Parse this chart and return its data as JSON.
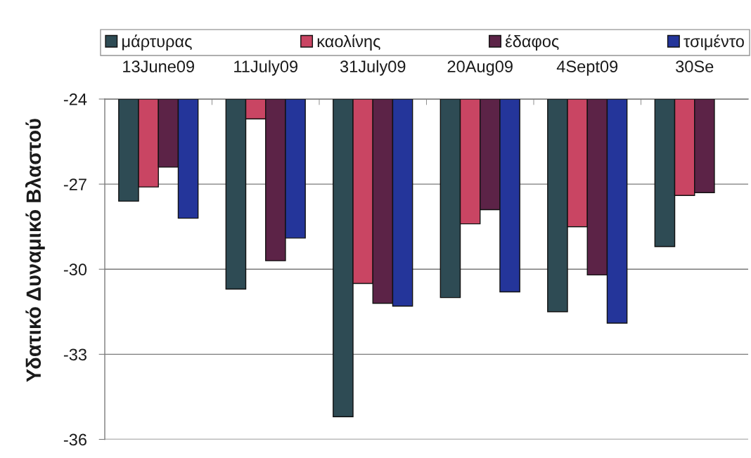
{
  "chart_data": {
    "type": "bar",
    "ylabel": "Υδατικό Δυναμικό Βλαστού",
    "categories": [
      "13June09",
      "11July09",
      "31July09",
      "20Aug09",
      "4Sept09",
      "30Se"
    ],
    "series": [
      {
        "name": "μάρτυρας",
        "color": "#2e4b54",
        "values": [
          -27.6,
          -30.7,
          -35.2,
          -31.0,
          -31.5,
          -29.2
        ]
      },
      {
        "name": "καολίνης",
        "color": "#c94563",
        "values": [
          -27.1,
          -24.7,
          -30.5,
          -28.4,
          -28.5,
          -27.4
        ]
      },
      {
        "name": "έδαφος",
        "color": "#5c2347",
        "values": [
          -26.4,
          -29.7,
          -31.2,
          -27.9,
          -30.2,
          -27.3
        ]
      },
      {
        "name": "τσιμέντο",
        "color": "#24359a",
        "values": [
          -28.2,
          -28.9,
          -31.3,
          -30.8,
          -31.9,
          null
        ]
      }
    ],
    "ylim": [
      -36,
      -24
    ],
    "yticks": [
      -24,
      -27,
      -30,
      -33,
      -36
    ],
    "grid": "y",
    "legend": "top"
  }
}
